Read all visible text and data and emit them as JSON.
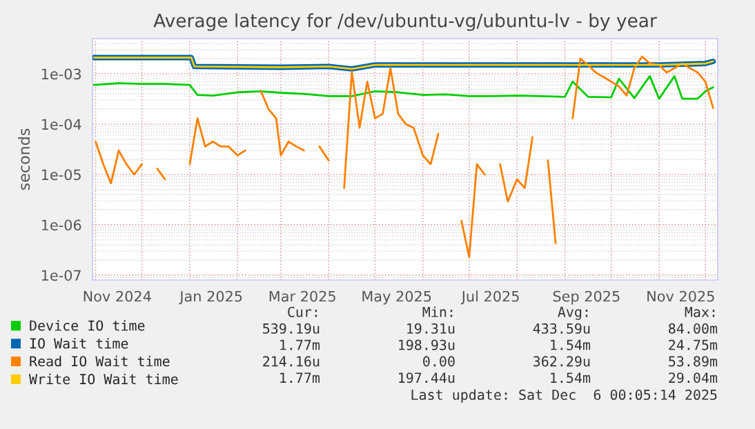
{
  "chart_data": {
    "type": "line",
    "title": "Average latency for /dev/ubuntu-vg/ubuntu-lv - by year",
    "ylabel": "seconds",
    "log": "y",
    "grid": true,
    "legend": "bottom",
    "xlim": [
      "2024-10-30",
      "2025-12-09"
    ],
    "xticks": [
      {
        "value": "2024-11-15",
        "label": "Nov 2024"
      },
      {
        "value": "2025-01-15",
        "label": "Jan 2025"
      },
      {
        "value": "2025-03-15",
        "label": "Mar 2025"
      },
      {
        "value": "2025-05-15",
        "label": "May 2025"
      },
      {
        "value": "2025-07-15",
        "label": "Jul 2025"
      },
      {
        "value": "2025-09-15",
        "label": "Sep 2025"
      },
      {
        "value": "2025-11-15",
        "label": "Nov 2025"
      }
    ],
    "ylim": [
      8e-08,
      0.005
    ],
    "yticks": [
      {
        "value": 1e-07,
        "label": "1e-07"
      },
      {
        "value": 1e-06,
        "label": "1e-06"
      },
      {
        "value": 1e-05,
        "label": "1e-05"
      },
      {
        "value": 0.0001,
        "label": "1e-04"
      },
      {
        "value": 0.001,
        "label": "1e-03"
      }
    ],
    "series": [
      {
        "name": "Device IO time",
        "color": "#00cc00",
        "x": [
          "2024-10-31",
          "2024-11-16",
          "2024-12-01",
          "2024-12-16",
          "2025-01-01",
          "2025-01-06",
          "2025-01-16",
          "2025-02-01",
          "2025-02-16",
          "2025-03-01",
          "2025-03-16",
          "2025-04-01",
          "2025-04-16",
          "2025-05-01",
          "2025-05-16",
          "2025-06-01",
          "2025-06-16",
          "2025-07-01",
          "2025-07-16",
          "2025-08-01",
          "2025-08-16",
          "2025-09-01",
          "2025-09-06",
          "2025-09-16",
          "2025-10-01",
          "2025-10-06",
          "2025-10-16",
          "2025-10-26",
          "2025-11-01",
          "2025-11-11",
          "2025-11-16",
          "2025-11-26",
          "2025-12-01",
          "2025-12-06"
        ],
        "values": [
          0.0006,
          0.00065,
          0.00063,
          0.00063,
          0.0006,
          0.00038,
          0.00037,
          0.00043,
          0.00045,
          0.00042,
          0.0004,
          0.00036,
          0.00036,
          0.00045,
          0.00043,
          0.00038,
          0.00039,
          0.00036,
          0.00036,
          0.00037,
          0.00036,
          0.00035,
          0.0007,
          0.00035,
          0.00034,
          0.0008,
          0.00033,
          0.0009,
          0.00032,
          0.0009,
          0.00032,
          0.00032,
          0.00045,
          0.00054
        ]
      },
      {
        "name": "IO Wait time",
        "color": "#0066b3",
        "x": [
          "2024-10-31",
          "2024-12-01",
          "2025-01-02",
          "2025-01-04",
          "2025-03-01",
          "2025-04-01",
          "2025-04-16",
          "2025-05-01",
          "2025-07-01",
          "2025-09-01",
          "2025-11-01",
          "2025-12-01",
          "2025-12-06"
        ],
        "values": [
          0.0021,
          0.0021,
          0.0021,
          0.0014,
          0.00135,
          0.0014,
          0.00125,
          0.0015,
          0.0015,
          0.0015,
          0.0015,
          0.0016,
          0.00177
        ]
      },
      {
        "name": "Read IO Wait time",
        "color": "#ff8000",
        "x": [
          "2024-11-01",
          "2024-11-06",
          "2024-11-11",
          "2024-11-16",
          "2024-11-21",
          "2024-11-26",
          "2024-12-01",
          "2024-12-06",
          "2024-12-11",
          "2024-12-16",
          "2024-12-21",
          "2024-12-26",
          "2025-01-01",
          "2025-01-06",
          "2025-01-11",
          "2025-01-16",
          "2025-01-21",
          "2025-01-26",
          "2025-02-01",
          "2025-02-06",
          "2025-02-11",
          "2025-02-16",
          "2025-02-21",
          "2025-02-26",
          "2025-03-01",
          "2025-03-06",
          "2025-03-11",
          "2025-03-16",
          "2025-03-21",
          "2025-03-26",
          "2025-04-01",
          "2025-04-06",
          "2025-04-11",
          "2025-04-16",
          "2025-04-21",
          "2025-04-26",
          "2025-05-01",
          "2025-05-06",
          "2025-05-11",
          "2025-05-16",
          "2025-05-21",
          "2025-05-26",
          "2025-06-01",
          "2025-06-06",
          "2025-06-11",
          "2025-06-16",
          "2025-06-21",
          "2025-06-26",
          "2025-07-01",
          "2025-07-06",
          "2025-07-11",
          "2025-07-16",
          "2025-07-21",
          "2025-07-26",
          "2025-08-01",
          "2025-08-06",
          "2025-08-11",
          "2025-08-16",
          "2025-08-21",
          "2025-08-26",
          "2025-09-01",
          "2025-09-06",
          "2025-09-11",
          "2025-09-16",
          "2025-09-21",
          "2025-09-26",
          "2025-10-01",
          "2025-10-06",
          "2025-10-11",
          "2025-10-16",
          "2025-10-21",
          "2025-10-26",
          "2025-11-01",
          "2025-11-06",
          "2025-11-11",
          "2025-11-16",
          "2025-11-21",
          "2025-11-26",
          "2025-12-01",
          "2025-12-06"
        ],
        "values": [
          4.5e-05,
          1.6e-05,
          6.7e-06,
          3e-05,
          1.6e-05,
          1e-05,
          1.6e-05,
          null,
          1.3e-05,
          8e-06,
          null,
          null,
          1.6e-05,
          0.00013,
          3.6e-05,
          4.5e-05,
          3.6e-05,
          3.6e-05,
          2.4e-05,
          3e-05,
          null,
          0.00046,
          0.0002,
          0.00013,
          2.4e-05,
          4.5e-05,
          3.6e-05,
          3e-05,
          null,
          3.6e-05,
          1.9e-05,
          null,
          5.4e-06,
          0.0011,
          8.5e-05,
          0.0007,
          0.00013,
          0.00016,
          0.0013,
          0.00016,
          0.0001,
          8.5e-05,
          2.4e-05,
          1.6e-05,
          6.4e-05,
          null,
          null,
          1.2e-06,
          2.3e-07,
          1.6e-05,
          1e-05,
          null,
          1.6e-05,
          2.9e-06,
          8e-06,
          5.4e-06,
          5.5e-05,
          null,
          1.9e-05,
          4.3e-07,
          null,
          0.00013,
          0.002,
          0.0015,
          0.00106,
          0.00086,
          0.0007,
          0.00056,
          0.00037,
          0.0013,
          0.0022,
          0.0016,
          0.0015,
          0.00106,
          0.0013,
          0.0016,
          0.0013,
          0.00106,
          0.0007,
          0.00021
        ]
      },
      {
        "name": "Write IO Wait time",
        "color": "#ffcc00",
        "x": [
          "2024-10-31",
          "2024-12-01",
          "2025-01-02",
          "2025-01-04",
          "2025-03-01",
          "2025-04-01",
          "2025-04-16",
          "2025-05-01",
          "2025-07-01",
          "2025-09-01",
          "2025-11-01",
          "2025-12-01",
          "2025-12-06"
        ],
        "values": [
          0.0021,
          0.0021,
          0.0021,
          0.0014,
          0.00135,
          0.0014,
          0.00125,
          0.0015,
          0.0015,
          0.0015,
          0.0015,
          0.0016,
          0.00177
        ]
      }
    ],
    "annotations": [
      "Cur:",
      "Min:",
      "Avg:",
      "Max:",
      "539.19u",
      "19.31u",
      "433.59u",
      "84.00m",
      "1.77m",
      "198.93u",
      "1.54m",
      "24.75m",
      "214.16u",
      "0.00",
      "362.29u",
      "53.89m",
      "1.77m",
      "197.44u",
      "1.54m",
      "29.04m",
      "Last update: Sat Dec  6 00:05:14 2025"
    ]
  }
}
